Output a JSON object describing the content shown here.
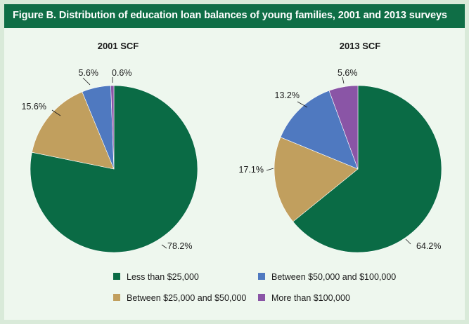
{
  "figure": {
    "title": "Figure B. Distribution of education loan balances of young families, 2001 and 2013 surveys"
  },
  "colors": {
    "header_bg": "#0f6e46",
    "panel_bg": "#eef7ee",
    "border": "#d9ead9"
  },
  "chart_data": [
    {
      "type": "pie",
      "title": "2001 SCF",
      "categories": [
        "Less than $25,000",
        "Between $25,000 and $50,000",
        "Between $50,000 and $100,000",
        "More than $100,000"
      ],
      "values": [
        78.2,
        15.6,
        5.6,
        0.6
      ],
      "labels": [
        "78.2%",
        "15.6%",
        "5.6%",
        "0.6%"
      ],
      "colors": [
        "#0a6b45",
        "#c19f5e",
        "#4f79c0",
        "#8a55a6"
      ],
      "legend_position": "bottom"
    },
    {
      "type": "pie",
      "title": "2013 SCF",
      "categories": [
        "Less than $25,000",
        "Between $25,000 and $50,000",
        "Between $50,000 and $100,000",
        "More than $100,000"
      ],
      "values": [
        64.2,
        17.1,
        13.2,
        5.6
      ],
      "labels": [
        "64.2%",
        "17.1%",
        "13.2%",
        "5.6%"
      ],
      "colors": [
        "#0a6b45",
        "#c19f5e",
        "#4f79c0",
        "#8a55a6"
      ],
      "legend_position": "bottom"
    }
  ],
  "legend": [
    {
      "label": "Less than $25,000",
      "color": "#0a6b45"
    },
    {
      "label": "Between $50,000 and $100,000",
      "color": "#4f79c0"
    },
    {
      "label": "Between $25,000 and $50,000",
      "color": "#c19f5e"
    },
    {
      "label": "More than $100,000",
      "color": "#8a55a6"
    }
  ]
}
